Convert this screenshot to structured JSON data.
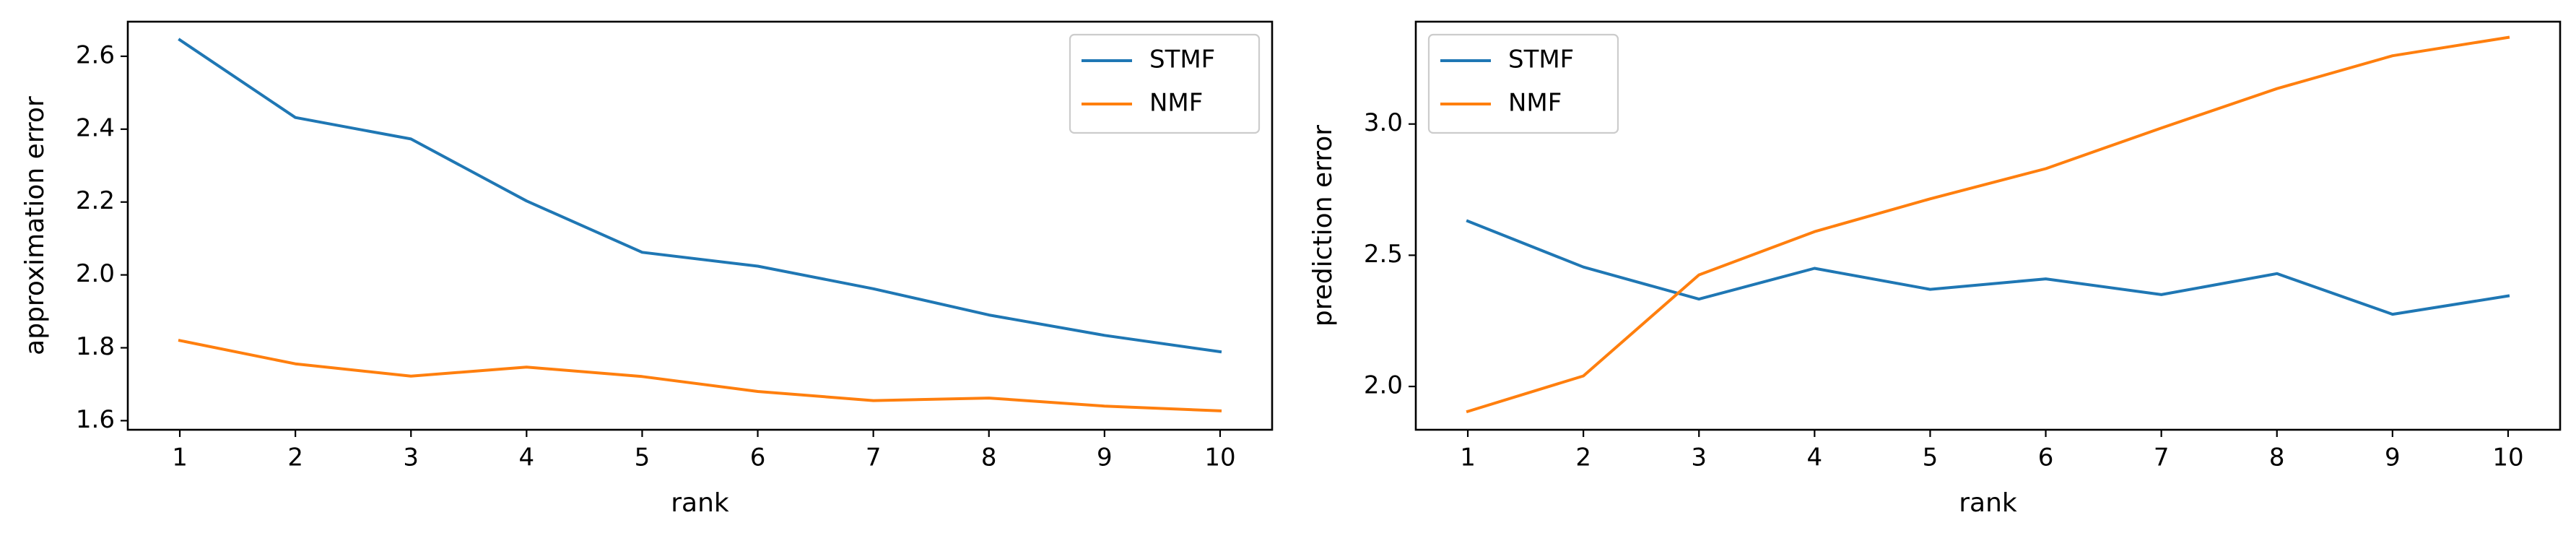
{
  "colors": {
    "stmf": "#1f77b4",
    "nmf": "#ff7f0e"
  },
  "chart_data": [
    {
      "type": "line",
      "xlabel": "rank",
      "ylabel": "approximation error",
      "x": [
        1,
        2,
        3,
        4,
        5,
        6,
        7,
        8,
        9,
        10
      ],
      "xlim": [
        0.55,
        10.45
      ],
      "ylim": [
        1.575,
        2.695
      ],
      "yticks": [
        1.6,
        1.8,
        2.0,
        2.2,
        2.4,
        2.6
      ],
      "ytick_labels": [
        "1.6",
        "1.8",
        "2.0",
        "2.2",
        "2.4",
        "2.6"
      ],
      "legend_position": "upper-right",
      "grid": false,
      "series": [
        {
          "name": "STMF",
          "color": "#1f77b4",
          "values": [
            2.645,
            2.432,
            2.373,
            2.203,
            2.062,
            2.024,
            1.962,
            1.89,
            1.834,
            1.789
          ]
        },
        {
          "name": "NMF",
          "color": "#ff7f0e",
          "values": [
            1.82,
            1.756,
            1.722,
            1.747,
            1.721,
            1.68,
            1.655,
            1.662,
            1.64,
            1.627
          ]
        }
      ]
    },
    {
      "type": "line",
      "xlabel": "rank",
      "ylabel": "prediction error",
      "x": [
        1,
        2,
        3,
        4,
        5,
        6,
        7,
        8,
        9,
        10
      ],
      "xlim": [
        0.55,
        10.45
      ],
      "ylim": [
        1.835,
        3.39
      ],
      "yticks": [
        2.0,
        2.5,
        3.0
      ],
      "ytick_labels": [
        "2.0",
        "2.5",
        "3.0"
      ],
      "legend_position": "upper-left",
      "grid": false,
      "series": [
        {
          "name": "STMF",
          "color": "#1f77b4",
          "values": [
            2.63,
            2.455,
            2.333,
            2.45,
            2.37,
            2.41,
            2.35,
            2.43,
            2.275,
            2.345
          ]
        },
        {
          "name": "NMF",
          "color": "#ff7f0e",
          "values": [
            1.905,
            2.04,
            2.425,
            2.59,
            2.715,
            2.83,
            2.985,
            3.135,
            3.26,
            3.33
          ]
        }
      ]
    }
  ]
}
